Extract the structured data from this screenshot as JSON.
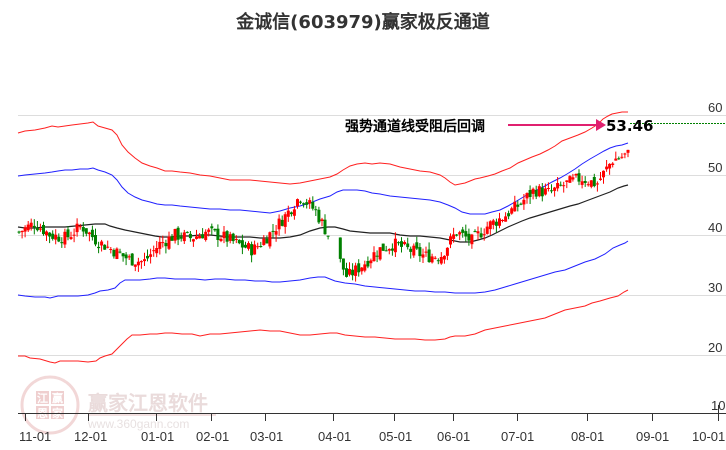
{
  "title": "金诚信(603979)赢家极反通道",
  "annotation": {
    "text": "强势通道线受阻后回调",
    "price_label": "53.46",
    "arrow_color": "#e0206f"
  },
  "watermark": {
    "brand": "赢家江恩软件",
    "url": "www.360gann.com",
    "seal_chars": [
      "江",
      "赢",
      "恩",
      "家"
    ]
  },
  "colors": {
    "outer_channel": "#ff2020",
    "inner_channel": "#2020ff",
    "middle_line": "#222222",
    "up_candle": "#ff0000",
    "down_candle": "#008000",
    "price_line": "#008000",
    "grid": "#dddddd",
    "axis": "#333333"
  },
  "chart_data": {
    "type": "candlestick-with-channels",
    "title": "金诚信(603979)赢家极反通道",
    "xlabel": "",
    "ylabel": "",
    "ylim": [
      10,
      63
    ],
    "y_ticks": [
      10,
      20,
      30,
      40,
      50,
      60
    ],
    "x_ticks": [
      "11-01",
      "12-01",
      "01-01",
      "02-01",
      "03-01",
      "04-01",
      "05-01",
      "06-01",
      "07-01",
      "08-01",
      "09-01",
      "10-01"
    ],
    "grid": true,
    "legend": null,
    "last_price": 53.46,
    "annotation": "强势通道线受阻后回调",
    "series": [
      {
        "name": "outer_upper_channel",
        "color": "#ff2020",
        "x": [
          "11-01",
          "11-15",
          "12-01",
          "12-15",
          "01-01",
          "01-15",
          "02-01",
          "02-15",
          "03-01",
          "03-15",
          "04-01",
          "04-15",
          "05-01",
          "05-15",
          "06-01",
          "06-15",
          "07-01",
          "07-15",
          "08-01",
          "08-15",
          "08-22"
        ],
        "values": [
          57.5,
          58.3,
          58.8,
          55,
          51.5,
          49.8,
          49.2,
          48.8,
          48.5,
          47,
          47.5,
          50,
          49.8,
          48.5,
          47.8,
          45.5,
          47.5,
          51,
          55,
          58.5,
          60.5
        ]
      },
      {
        "name": "inner_upper_channel",
        "color": "#2020ff",
        "x": [
          "11-01",
          "11-15",
          "12-01",
          "12-15",
          "01-01",
          "01-15",
          "02-01",
          "02-15",
          "03-01",
          "03-15",
          "04-01",
          "04-15",
          "05-01",
          "05-15",
          "06-01",
          "06-15",
          "07-01",
          "07-15",
          "08-01",
          "08-15",
          "08-22"
        ],
        "values": [
          49.5,
          50.3,
          50.8,
          47,
          43.5,
          43,
          43.5,
          43.2,
          42.7,
          44,
          44.7,
          45,
          44.5,
          43.5,
          43,
          40.5,
          42,
          45.5,
          48,
          51,
          52.5
        ]
      },
      {
        "name": "middle_line",
        "color": "#222222",
        "x": [
          "11-01",
          "11-15",
          "12-01",
          "12-15",
          "01-01",
          "01-15",
          "02-01",
          "02-15",
          "03-01",
          "03-15",
          "04-01",
          "04-15",
          "05-01",
          "05-15",
          "06-01",
          "06-15",
          "07-01",
          "07-15",
          "08-01",
          "08-15",
          "08-22"
        ],
        "values": [
          40.8,
          40.8,
          41.2,
          40,
          39.3,
          39.6,
          39.8,
          39.5,
          39.3,
          40.5,
          41,
          40.2,
          39.5,
          39,
          38.6,
          38.2,
          39.5,
          41.5,
          44,
          46.5,
          48
        ]
      },
      {
        "name": "inner_lower_channel",
        "color": "#2020ff",
        "x": [
          "11-01",
          "11-15",
          "12-01",
          "12-15",
          "01-01",
          "01-15",
          "02-01",
          "02-15",
          "03-01",
          "03-15",
          "04-01",
          "04-15",
          "05-01",
          "05-15",
          "06-01",
          "06-15",
          "07-01",
          "07-15",
          "08-01",
          "08-15",
          "08-22"
        ],
        "values": [
          29.8,
          29.3,
          29.5,
          31.5,
          33.2,
          33.2,
          33.3,
          33.1,
          33.3,
          32.7,
          32.3,
          30.8,
          30.5,
          30.2,
          30.3,
          29.8,
          30.5,
          32.5,
          34.5,
          37,
          39
        ]
      },
      {
        "name": "outer_lower_channel",
        "color": "#ff2020",
        "x": [
          "11-01",
          "11-15",
          "12-01",
          "12-15",
          "01-01",
          "01-15",
          "02-01",
          "02-15",
          "03-01",
          "03-15",
          "04-01",
          "04-15",
          "05-01",
          "05-15",
          "06-01",
          "06-15",
          "07-01",
          "07-15",
          "08-01",
          "08-15",
          "08-22"
        ],
        "values": [
          19.2,
          18.7,
          19.0,
          23,
          25.5,
          25.8,
          26.3,
          25.5,
          25.3,
          24.5,
          24.3,
          24,
          23.5,
          23.2,
          22.5,
          23,
          24,
          25.5,
          27.3,
          29,
          30.7
        ]
      },
      {
        "name": "price",
        "color": "#000000",
        "x": [
          "11-01",
          "11-08",
          "11-15",
          "11-22",
          "12-01",
          "12-08",
          "12-15",
          "12-22",
          "01-01",
          "01-08",
          "01-15",
          "01-22",
          "02-01",
          "02-08",
          "02-15",
          "02-22",
          "03-01",
          "03-08",
          "03-15",
          "03-22",
          "04-01",
          "04-08",
          "04-15",
          "04-22",
          "05-01",
          "05-08",
          "05-15",
          "05-22",
          "06-01",
          "06-08",
          "06-15",
          "06-22",
          "07-01",
          "07-08",
          "07-15",
          "07-22",
          "08-01",
          "08-08",
          "08-15",
          "08-22"
        ],
        "values": [
          40.5,
          42,
          40,
          39.5,
          41.5,
          39,
          37.5,
          36,
          35.5,
          38.5,
          40,
          39.5,
          40.5,
          39.8,
          38.5,
          37.5,
          40,
          43,
          46.5,
          44,
          39,
          33,
          35,
          37.5,
          38.5,
          37.5,
          36.5,
          36.5,
          40.5,
          39,
          41.5,
          43,
          45,
          47.5,
          47,
          48.5,
          49.5,
          48.5,
          52.5,
          53.46
        ]
      }
    ]
  }
}
